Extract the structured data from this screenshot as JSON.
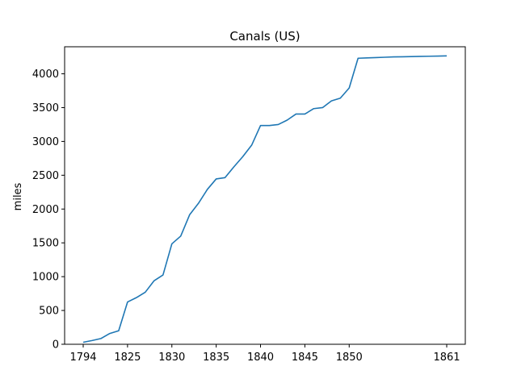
{
  "chart_data": {
    "type": "line",
    "title": "Canals (US)",
    "xlabel": "",
    "ylabel": "miles",
    "x_tick_labels": [
      "1794",
      "1825",
      "1830",
      "1835",
      "1840",
      "1845",
      "1850",
      "1861"
    ],
    "y_ticks": [
      0,
      500,
      1000,
      1500,
      2000,
      2500,
      3000,
      3500,
      4000
    ],
    "ylim": [
      0,
      4400
    ],
    "grid": false,
    "series": [
      {
        "color": "#1f77b4",
        "x": [
          "1794",
          "1800",
          "1810",
          "1816",
          "1824",
          "1825",
          "1826",
          "1827",
          "1828",
          "1829",
          "1830",
          "1831",
          "1832",
          "1833",
          "1834",
          "1835",
          "1836",
          "1837",
          "1838",
          "1839",
          "1840",
          "1841",
          "1842",
          "1843",
          "1844",
          "1845",
          "1846",
          "1847",
          "1848",
          "1849",
          "1850",
          "1851",
          "1852",
          "1853",
          "1854",
          "1855",
          "1856",
          "1857",
          "1858",
          "1859",
          "1860",
          "1861"
        ],
        "values": [
          30,
          55,
          85,
          160,
          200,
          625,
          690,
          770,
          940,
          1025,
          1485,
          1600,
          1915,
          2085,
          2290,
          2445,
          2465,
          2625,
          2775,
          2945,
          3235,
          3235,
          3250,
          3315,
          3405,
          3405,
          3485,
          3500,
          3600,
          3640,
          3790,
          4230,
          4235,
          4240,
          4245,
          4250,
          4252,
          4255,
          4258,
          4260,
          4262,
          4265
        ]
      }
    ]
  }
}
